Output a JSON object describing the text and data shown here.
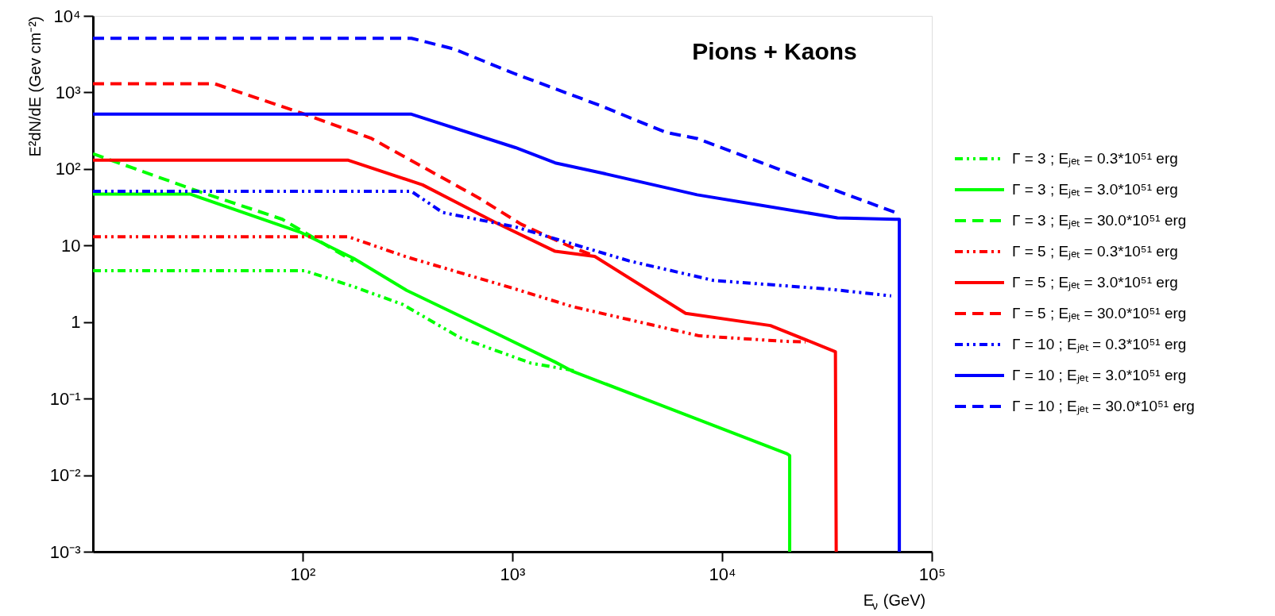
{
  "chart_data": {
    "type": "line",
    "title": "Pions + Kaons",
    "xlabel": "E$_{ν}$ (GeV)",
    "ylabel": "E²dN/dE (Gev cm⁻²)",
    "log": "xy",
    "legend": "right",
    "xlim": [
      10,
      100000
    ],
    "ylim": [
      0.001,
      10000
    ],
    "xticks": [
      {
        "value": 100,
        "label": "10²"
      },
      {
        "value": 1000,
        "label": "10³"
      },
      {
        "value": 10000,
        "label": "10⁴"
      },
      {
        "value": 100000,
        "label": "10⁵"
      }
    ],
    "yticks": [
      {
        "value": 0.001,
        "label": "10⁻³"
      },
      {
        "value": 0.01,
        "label": "10⁻²"
      },
      {
        "value": 0.1,
        "label": "10⁻¹"
      },
      1,
      10,
      {
        "value": 100,
        "label": "10²"
      },
      {
        "value": 1000,
        "label": "10³"
      },
      {
        "value": 10000,
        "label": "10⁴"
      }
    ],
    "series": [
      {
        "name": "Γ = 3 ; Eⱼₑₜ = 0.3*10⁵¹ erg",
        "color": "#00ff00",
        "line_style": "dashdot",
        "x": [
          10,
          102,
          175,
          300,
          560,
          1230,
          1550,
          2000
        ],
        "values": [
          4.7,
          4.7,
          2.9,
          1.7,
          0.63,
          0.29,
          0.26,
          0.23
        ]
      },
      {
        "name": "Γ = 3 ; Eⱼₑₜ = 3.0*10⁵¹ erg",
        "color": "#00ff00",
        "line_style": "solid",
        "x": [
          10,
          29,
          97,
          175,
          313,
          830,
          1600,
          1920,
          10350,
          20400,
          21000,
          21000
        ],
        "values": [
          47,
          47,
          15,
          6.8,
          2.6,
          0.72,
          0.3,
          0.23,
          0.039,
          0.019,
          0.018,
          0.001
        ]
      },
      {
        "name": "Γ = 3 ; Eⱼₑₜ = 30.0*10⁵¹ erg",
        "color": "#00ff00",
        "line_style": "dashed",
        "x": [
          10,
          30,
          80,
          106,
          175
        ],
        "values": [
          158,
          54,
          22,
          14,
          6.2
        ]
      },
      {
        "name": "Γ = 5 ; Eⱼₑₜ = 0.3*10⁵¹ erg",
        "color": "#ff0000",
        "line_style": "dashdot",
        "x": [
          10,
          165,
          313,
          1035,
          1920,
          7800,
          20000,
          25000
        ],
        "values": [
          13,
          13,
          7.1,
          2.7,
          1.6,
          0.66,
          0.56,
          0.55
        ]
      },
      {
        "name": "Γ = 5 ; Eⱼₑₜ = 3.0*10⁵¹ erg",
        "color": "#ff0000",
        "line_style": "solid",
        "x": [
          10,
          165,
          373,
          830,
          1600,
          2470,
          6700,
          17000,
          34700,
          35000
        ],
        "values": [
          130,
          130,
          62,
          20,
          8.4,
          7.2,
          1.3,
          0.9,
          0.41,
          0.001
        ]
      },
      {
        "name": "Γ = 5 ; Eⱼₑₜ = 30.0*10⁵¹ erg",
        "color": "#ff0000",
        "line_style": "dashed",
        "x": [
          10,
          38,
          98,
          213,
          690,
          1100,
          1900,
          2500
        ],
        "values": [
          1300,
          1300,
          540,
          250,
          42,
          19,
          9.6,
          7.2
        ]
      },
      {
        "name": "Γ = 10 ; Eⱼₑₜ = 0.3*10⁵¹ erg",
        "color": "#0000ff",
        "line_style": "dashdot",
        "x": [
          10,
          330,
          465,
          1035,
          3600,
          9100,
          32000,
          64000
        ],
        "values": [
          51,
          51,
          27,
          17.5,
          6.3,
          3.5,
          2.7,
          2.2
        ]
      },
      {
        "name": "Γ = 10 ; Eⱼₑₜ = 3.0*10⁵¹ erg",
        "color": "#0000ff",
        "line_style": "solid",
        "x": [
          10,
          330,
          1035,
          1600,
          2650,
          7600,
          35500,
          67000,
          70000,
          70000
        ],
        "values": [
          520,
          520,
          190,
          120,
          89,
          46,
          23,
          22,
          22,
          0.001
        ]
      },
      {
        "name": "Γ = 10 ; Eⱼₑₜ = 30.0*10⁵¹ erg",
        "color": "#0000ff",
        "line_style": "dashed",
        "x": [
          10,
          330,
          525,
          1035,
          2600,
          5400,
          7600,
          23000,
          67000,
          70000
        ],
        "values": [
          5100,
          5100,
          3700,
          1740,
          680,
          300,
          250,
          80,
          27,
          25
        ]
      }
    ]
  }
}
